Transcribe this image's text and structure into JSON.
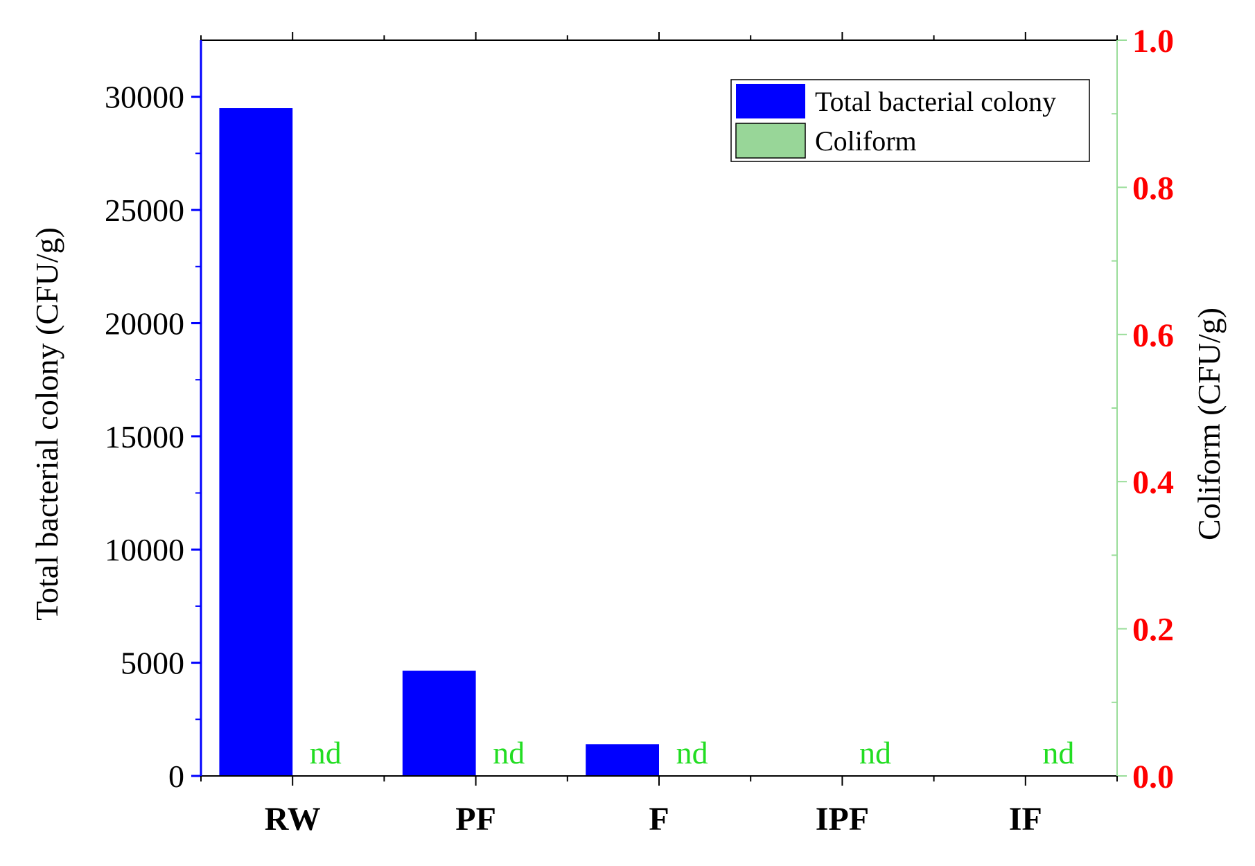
{
  "chart_data": {
    "type": "bar",
    "categories": [
      "RW",
      "PF",
      "F",
      "IPF",
      "IF"
    ],
    "series": [
      {
        "name": "Total bacterial colony",
        "axis": "left",
        "color": "#0000ff",
        "values": [
          29500,
          4650,
          1400,
          30,
          30
        ]
      },
      {
        "name": "Coliform",
        "axis": "right",
        "color": "#98d698",
        "values": [
          0,
          0,
          0,
          0,
          0
        ],
        "annotations": [
          "nd",
          "nd",
          "nd",
          "nd",
          "nd"
        ],
        "annotation_color": "#22dd22"
      }
    ],
    "y_left": {
      "label": "Total bacterial colony (CFU/g)",
      "range": [
        0,
        32500
      ],
      "ticks": [
        0,
        5000,
        10000,
        15000,
        20000,
        25000,
        30000
      ],
      "minor_step": 2500,
      "axis_color": "#0000ff"
    },
    "y_right": {
      "label": "Coliform (CFU/g)",
      "range": [
        0,
        1.0
      ],
      "ticks": [
        "0.0",
        "0.2",
        "0.4",
        "0.6",
        "0.8",
        "1.0"
      ],
      "tick_values": [
        0,
        0.2,
        0.4,
        0.6,
        0.8,
        1.0
      ],
      "minor_step": 0.1,
      "axis_color": "#99dd99",
      "tick_label_color": "#ff0000"
    },
    "legend": {
      "position": "top-right",
      "entries": [
        "Total bacterial colony",
        "Coliform"
      ]
    },
    "grid": false
  }
}
